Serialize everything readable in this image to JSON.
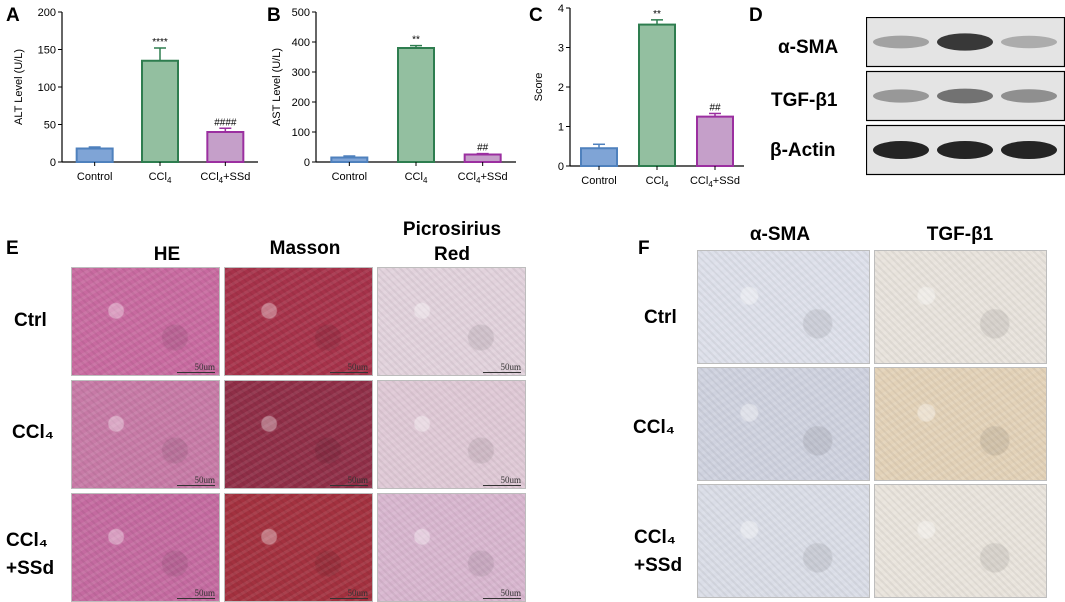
{
  "panels": {
    "A": "A",
    "B": "B",
    "C": "C",
    "D": "D",
    "E": "E",
    "F": "F"
  },
  "chart_data": [
    {
      "type": "bar",
      "panel": "A",
      "categories": [
        "Control",
        "CCl4",
        "CCl4+SSd"
      ],
      "category_labels": [
        {
          "main": "Control",
          "sub": "",
          "tail": ""
        },
        {
          "main": "CCl",
          "sub": "4",
          "tail": ""
        },
        {
          "main": "CCl",
          "sub": "4",
          "tail": "+SSd"
        }
      ],
      "values": [
        18,
        135,
        40
      ],
      "errors": [
        2,
        17,
        5
      ],
      "significance": [
        "",
        "****",
        "####"
      ],
      "ylabel": "ALT Level (U/L)",
      "ylim": [
        0,
        200
      ],
      "yticks": [
        "0",
        "50",
        "100",
        "150",
        "200"
      ],
      "colors": [
        "#4F81BD",
        "#2E7D4F",
        "#9B2FA0"
      ],
      "fills": [
        "#7FA4D6",
        "#93BFA0",
        "#C59FC9"
      ]
    },
    {
      "type": "bar",
      "panel": "B",
      "categories": [
        "Control",
        "CCl4",
        "CCl4+SSd"
      ],
      "category_labels": [
        {
          "main": "Control",
          "sub": "",
          "tail": ""
        },
        {
          "main": "CCl",
          "sub": "4",
          "tail": ""
        },
        {
          "main": "CCl",
          "sub": "4",
          "tail": "+SSd"
        }
      ],
      "values": [
        15,
        380,
        25
      ],
      "errors": [
        5,
        8,
        3
      ],
      "significance": [
        "",
        "**",
        "##"
      ],
      "ylabel": "AST Level (U/L)",
      "ylim": [
        0,
        500
      ],
      "yticks": [
        "0",
        "100",
        "200",
        "300",
        "400",
        "500"
      ],
      "colors": [
        "#4F81BD",
        "#2E7D4F",
        "#9B2FA0"
      ],
      "fills": [
        "#7FA4D6",
        "#93BFA0",
        "#C59FC9"
      ]
    },
    {
      "type": "bar",
      "panel": "C",
      "categories": [
        "Control",
        "CCl4",
        "CCl4+SSd"
      ],
      "category_labels": [
        {
          "main": "Control",
          "sub": "",
          "tail": ""
        },
        {
          "main": "CCl",
          "sub": "4",
          "tail": ""
        },
        {
          "main": "CCl",
          "sub": "4",
          "tail": "+SSd"
        }
      ],
      "values": [
        0.45,
        3.58,
        1.25
      ],
      "errors": [
        0.1,
        0.12,
        0.08
      ],
      "significance": [
        "",
        "**",
        "##"
      ],
      "ylabel": "Score",
      "ylim": [
        0,
        4
      ],
      "yticks": [
        "0",
        "1",
        "2",
        "3",
        "4"
      ],
      "colors": [
        "#4F81BD",
        "#2E7D4F",
        "#9B2FA0"
      ],
      "fills": [
        "#7FA4D6",
        "#93BFA0",
        "#C59FC9"
      ]
    }
  ],
  "western_blot": {
    "rows": [
      {
        "label": "α-SMA",
        "intensity": [
          0.35,
          0.9,
          0.3
        ]
      },
      {
        "label": "TGF-β1",
        "intensity": [
          0.4,
          0.6,
          0.45
        ]
      },
      {
        "label": "β-Actin",
        "intensity": [
          1.0,
          1.0,
          1.0
        ]
      }
    ]
  },
  "histology": {
    "headers": [
      "HE",
      "Masson",
      "Picrosirius",
      "Red"
    ],
    "rows": [
      {
        "label1": "Ctrl",
        "label2": ""
      },
      {
        "label1": "CCl₄",
        "label2": ""
      },
      {
        "label1": "CCl₄",
        "label2": "+SSd"
      }
    ],
    "scale_text": "50um",
    "tile_colors": [
      [
        "#c86aa0",
        "#a6324a",
        "#e2d2dc"
      ],
      [
        "#c77aa6",
        "#8f2e47",
        "#dfc9d6"
      ],
      [
        "#c46aa0",
        "#a3313f",
        "#d8b6cf"
      ]
    ]
  },
  "ihc": {
    "headers": [
      "α-SMA",
      "TGF-β1"
    ],
    "rows": [
      {
        "label1": "Ctrl",
        "label2": ""
      },
      {
        "label1": "CCl₄",
        "label2": ""
      },
      {
        "label1": "CCl₄",
        "label2": "+SSd"
      }
    ],
    "tile_colors": [
      [
        "#dde0ea",
        "#e8e3dc"
      ],
      [
        "#cfd2df",
        "#e3d2b8"
      ],
      [
        "#dadde7",
        "#e9e4dc"
      ]
    ]
  }
}
